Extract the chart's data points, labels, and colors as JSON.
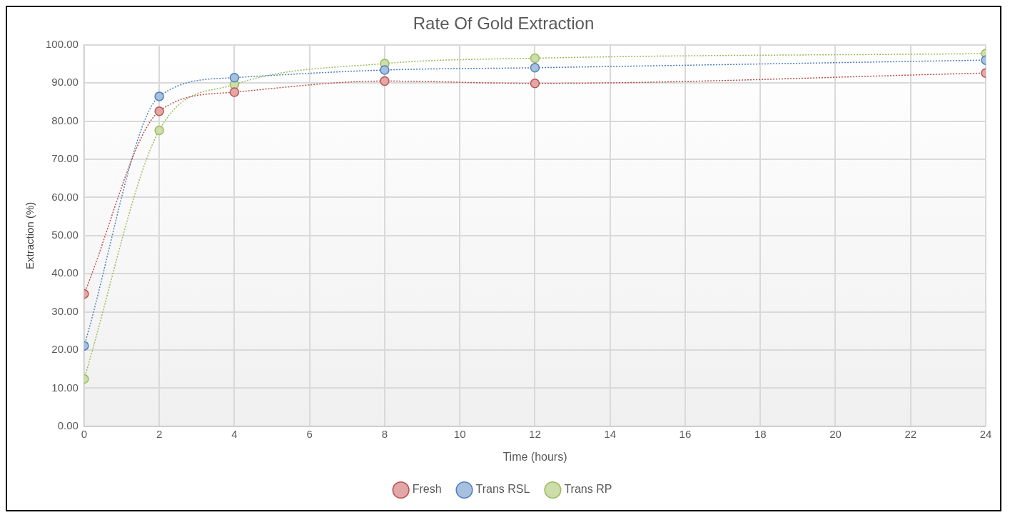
{
  "chart_data": {
    "type": "line",
    "title": "Rate Of Gold Extraction",
    "xlabel": "Time (hours)",
    "ylabel": "Extraction (%)",
    "x": [
      0,
      2,
      4,
      8,
      12,
      24
    ],
    "series": [
      {
        "name": "Fresh",
        "color": "#c0504d",
        "values": [
          34.7,
          82.6,
          87.6,
          90.5,
          89.9,
          92.6
        ]
      },
      {
        "name": "Trans RSL",
        "color": "#4f81bd",
        "values": [
          21.1,
          86.5,
          91.4,
          93.4,
          94.0,
          96.0
        ]
      },
      {
        "name": "Trans RP",
        "color": "#9bbb59",
        "values": [
          12.4,
          77.6,
          89.6,
          95.1,
          96.5,
          97.7
        ]
      }
    ],
    "xlim": [
      0,
      24
    ],
    "xticks": [
      0,
      2,
      4,
      6,
      8,
      10,
      12,
      14,
      16,
      18,
      20,
      22,
      24
    ],
    "ylim": [
      0,
      100
    ],
    "yticks": [
      {
        "value": 0,
        "label": "0.00"
      },
      {
        "value": 10,
        "label": "10.00"
      },
      {
        "value": 20,
        "label": "20.00"
      },
      {
        "value": 30,
        "label": "30.00"
      },
      {
        "value": 40,
        "label": "40.00"
      },
      {
        "value": 50,
        "label": "50.00"
      },
      {
        "value": 60,
        "label": "60.00"
      },
      {
        "value": 70,
        "label": "70.00"
      },
      {
        "value": 80,
        "label": "80.00"
      },
      {
        "value": 90,
        "label": "90.00"
      },
      {
        "value": 100,
        "label": "100.00"
      }
    ],
    "grid": true,
    "legend": "bottom",
    "marker": "circle",
    "line_style": "dotted"
  }
}
